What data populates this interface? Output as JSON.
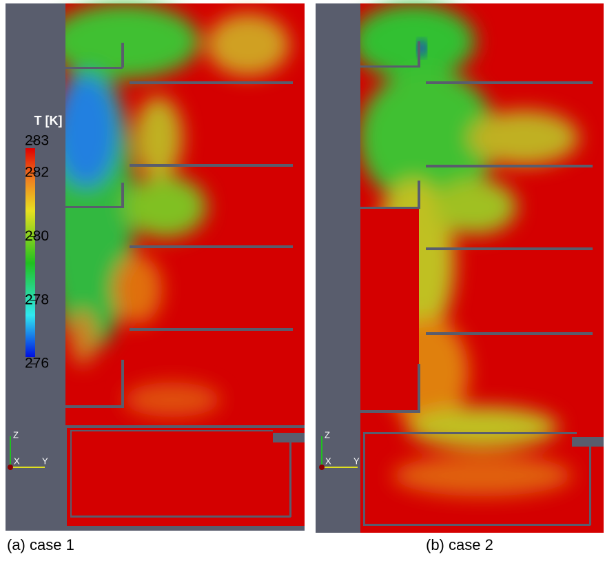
{
  "colorbar": {
    "title": "T [K]",
    "range": [
      276,
      283
    ],
    "ticks": [
      283,
      282,
      280,
      278,
      276
    ]
  },
  "panels": [
    {
      "caption": "(a) case 1",
      "axes": {
        "z": "Z",
        "x": "X",
        "y": "Y"
      }
    },
    {
      "caption": "(b) case 2",
      "axes": {
        "z": "Z",
        "x": "X",
        "y": "Y"
      }
    }
  ]
}
